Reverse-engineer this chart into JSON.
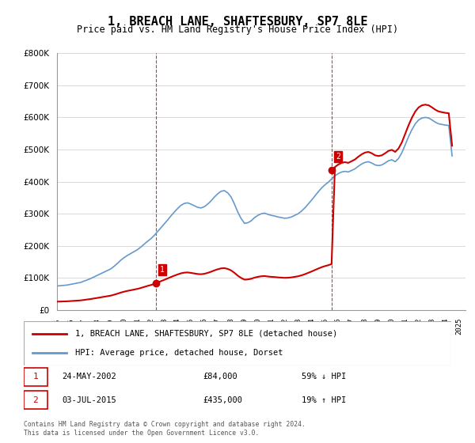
{
  "title": "1, BREACH LANE, SHAFTESBURY, SP7 8LE",
  "subtitle": "Price paid vs. HM Land Registry's House Price Index (HPI)",
  "legend_line1": "1, BREACH LANE, SHAFTESBURY, SP7 8LE (detached house)",
  "legend_line2": "HPI: Average price, detached house, Dorset",
  "footnote1": "Contains HM Land Registry data © Crown copyright and database right 2024.",
  "footnote2": "This data is licensed under the Open Government Licence v3.0.",
  "transaction1_label": "1",
  "transaction1_date": "24-MAY-2002",
  "transaction1_price": "£84,000",
  "transaction1_hpi": "59% ↓ HPI",
  "transaction1_year": 2002.4,
  "transaction1_price_val": 84000,
  "transaction2_label": "2",
  "transaction2_date": "03-JUL-2015",
  "transaction2_price": "£435,000",
  "transaction2_hpi": "19% ↑ HPI",
  "transaction2_year": 2015.5,
  "transaction2_price_val": 435000,
  "ylim": [
    0,
    800000
  ],
  "xlim_start": 1995.0,
  "xlim_end": 2025.5,
  "price_color": "#cc0000",
  "hpi_color": "#6699cc",
  "grid_color": "#cccccc",
  "background_color": "#ffffff",
  "hpi_data_x": [
    1995.0,
    1995.25,
    1995.5,
    1995.75,
    1996.0,
    1996.25,
    1996.5,
    1996.75,
    1997.0,
    1997.25,
    1997.5,
    1997.75,
    1998.0,
    1998.25,
    1998.5,
    1998.75,
    1999.0,
    1999.25,
    1999.5,
    1999.75,
    2000.0,
    2000.25,
    2000.5,
    2000.75,
    2001.0,
    2001.25,
    2001.5,
    2001.75,
    2002.0,
    2002.25,
    2002.5,
    2002.75,
    2003.0,
    2003.25,
    2003.5,
    2003.75,
    2004.0,
    2004.25,
    2004.5,
    2004.75,
    2005.0,
    2005.25,
    2005.5,
    2005.75,
    2006.0,
    2006.25,
    2006.5,
    2006.75,
    2007.0,
    2007.25,
    2007.5,
    2007.75,
    2008.0,
    2008.25,
    2008.5,
    2008.75,
    2009.0,
    2009.25,
    2009.5,
    2009.75,
    2010.0,
    2010.25,
    2010.5,
    2010.75,
    2011.0,
    2011.25,
    2011.5,
    2011.75,
    2012.0,
    2012.25,
    2012.5,
    2012.75,
    2013.0,
    2013.25,
    2013.5,
    2013.75,
    2014.0,
    2014.25,
    2014.5,
    2014.75,
    2015.0,
    2015.25,
    2015.5,
    2015.75,
    2016.0,
    2016.25,
    2016.5,
    2016.75,
    2017.0,
    2017.25,
    2017.5,
    2017.75,
    2018.0,
    2018.25,
    2018.5,
    2018.75,
    2019.0,
    2019.25,
    2019.5,
    2019.75,
    2020.0,
    2020.25,
    2020.5,
    2020.75,
    2021.0,
    2021.25,
    2021.5,
    2021.75,
    2022.0,
    2022.25,
    2022.5,
    2022.75,
    2023.0,
    2023.25,
    2023.5,
    2023.75,
    2024.0,
    2024.25,
    2024.5
  ],
  "hpi_data_y": [
    75000,
    76000,
    77000,
    78000,
    80000,
    82000,
    84000,
    86000,
    90000,
    94000,
    98000,
    103000,
    108000,
    113000,
    118000,
    123000,
    128000,
    136000,
    145000,
    155000,
    163000,
    170000,
    176000,
    182000,
    188000,
    196000,
    205000,
    214000,
    222000,
    232000,
    244000,
    256000,
    268000,
    280000,
    293000,
    305000,
    316000,
    326000,
    332000,
    334000,
    330000,
    325000,
    320000,
    318000,
    322000,
    330000,
    340000,
    352000,
    362000,
    370000,
    372000,
    365000,
    352000,
    330000,
    305000,
    285000,
    270000,
    272000,
    278000,
    288000,
    295000,
    300000,
    302000,
    298000,
    295000,
    293000,
    290000,
    288000,
    286000,
    287000,
    290000,
    295000,
    300000,
    308000,
    318000,
    330000,
    342000,
    355000,
    368000,
    380000,
    390000,
    398000,
    408000,
    418000,
    425000,
    430000,
    432000,
    430000,
    435000,
    440000,
    448000,
    455000,
    460000,
    462000,
    458000,
    452000,
    450000,
    452000,
    458000,
    465000,
    468000,
    462000,
    472000,
    490000,
    515000,
    540000,
    562000,
    580000,
    592000,
    598000,
    600000,
    598000,
    592000,
    585000,
    580000,
    578000,
    576000,
    575000,
    480000
  ],
  "price_data_x": [
    1995.0,
    2002.4,
    2015.5,
    2024.5
  ],
  "price_data_y": [
    0,
    84000,
    435000,
    435000
  ],
  "price_line_x": [
    1995.0,
    2002.4,
    2015.5,
    2024.5
  ],
  "price_line_y": [
    20000,
    84000,
    435000,
    435000
  ]
}
